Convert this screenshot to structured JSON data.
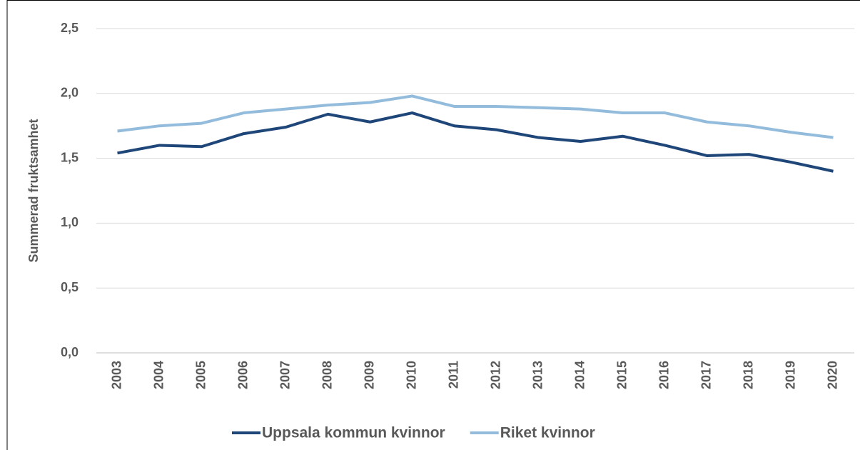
{
  "chart_data": {
    "type": "line",
    "y_label": "Summerad fruktsamhet",
    "categories": [
      "2003",
      "2004",
      "2005",
      "2006",
      "2007",
      "2008",
      "2009",
      "2010",
      "2011",
      "2012",
      "2013",
      "2014",
      "2015",
      "2016",
      "2017",
      "2018",
      "2019",
      "2020"
    ],
    "series": [
      {
        "name": "Uppsala kommun kvinnor",
        "color": "#1f4679",
        "values": [
          1.54,
          1.6,
          1.59,
          1.69,
          1.74,
          1.84,
          1.78,
          1.85,
          1.75,
          1.72,
          1.66,
          1.63,
          1.67,
          1.6,
          1.52,
          1.53,
          1.47,
          1.4
        ]
      },
      {
        "name": "Riket kvinnor",
        "color": "#93bcdc",
        "values": [
          1.71,
          1.75,
          1.77,
          1.85,
          1.88,
          1.91,
          1.93,
          1.98,
          1.9,
          1.9,
          1.89,
          1.88,
          1.85,
          1.85,
          1.78,
          1.75,
          1.7,
          1.66
        ]
      }
    ],
    "ylim": [
      0,
      2.5
    ],
    "yticks": [
      {
        "value": 0,
        "label": "0,0"
      },
      {
        "value": 0.5,
        "label": "0,5"
      },
      {
        "value": 1,
        "label": "1,0"
      },
      {
        "value": 1.5,
        "label": "1,5"
      },
      {
        "value": 2,
        "label": "2,0"
      },
      {
        "value": 2.5,
        "label": "2,5"
      }
    ],
    "grid": true,
    "legend": "bottom"
  }
}
